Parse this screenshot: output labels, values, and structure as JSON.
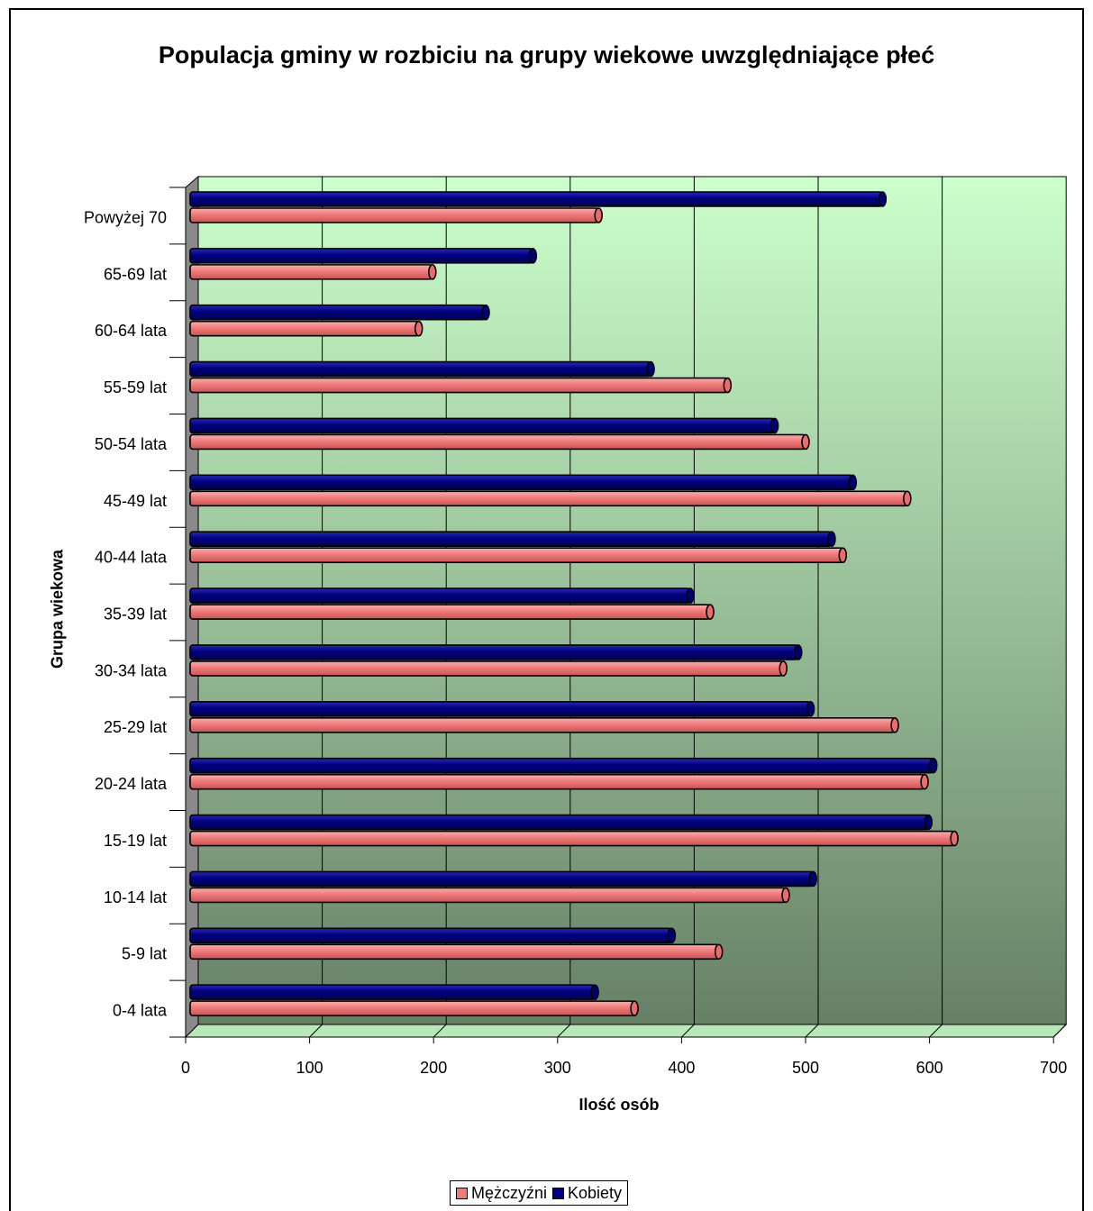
{
  "chart_data": {
    "type": "bar",
    "orientation": "horizontal",
    "title": "Populacja gminy w rozbiciu na grupy wiekowe uwzględniające płeć",
    "xlabel": "Ilość osób",
    "ylabel": "Grupa wiekowa",
    "xlim": [
      0,
      700
    ],
    "xticks": [
      "0",
      "100",
      "200",
      "300",
      "400",
      "500",
      "600",
      "700"
    ],
    "grid": true,
    "legend_position": "bottom",
    "categories": [
      "0-4 lata",
      "5-9 lat",
      "10-14 lat",
      "15-19 lat",
      "20-24 lata",
      "25-29 lat",
      "30-34 lata",
      "35-39 lat",
      "40-44 lata",
      "45-49 lat",
      "50-54 lata",
      "55-59 lat",
      "60-64 lata",
      "65-69 lat",
      "Powyżej 70"
    ],
    "series": [
      {
        "name": "Mężczyźni",
        "color": "#ee7a7a",
        "values": [
          362,
          430,
          484,
          620,
          596,
          572,
          482,
          423,
          530,
          582,
          500,
          437,
          188,
          199,
          333
        ]
      },
      {
        "name": "Kobiety",
        "color": "#000080",
        "values": [
          330,
          392,
          506,
          599,
          603,
          504,
          494,
          407,
          521,
          538,
          475,
          375,
          242,
          280,
          562
        ]
      }
    ]
  }
}
